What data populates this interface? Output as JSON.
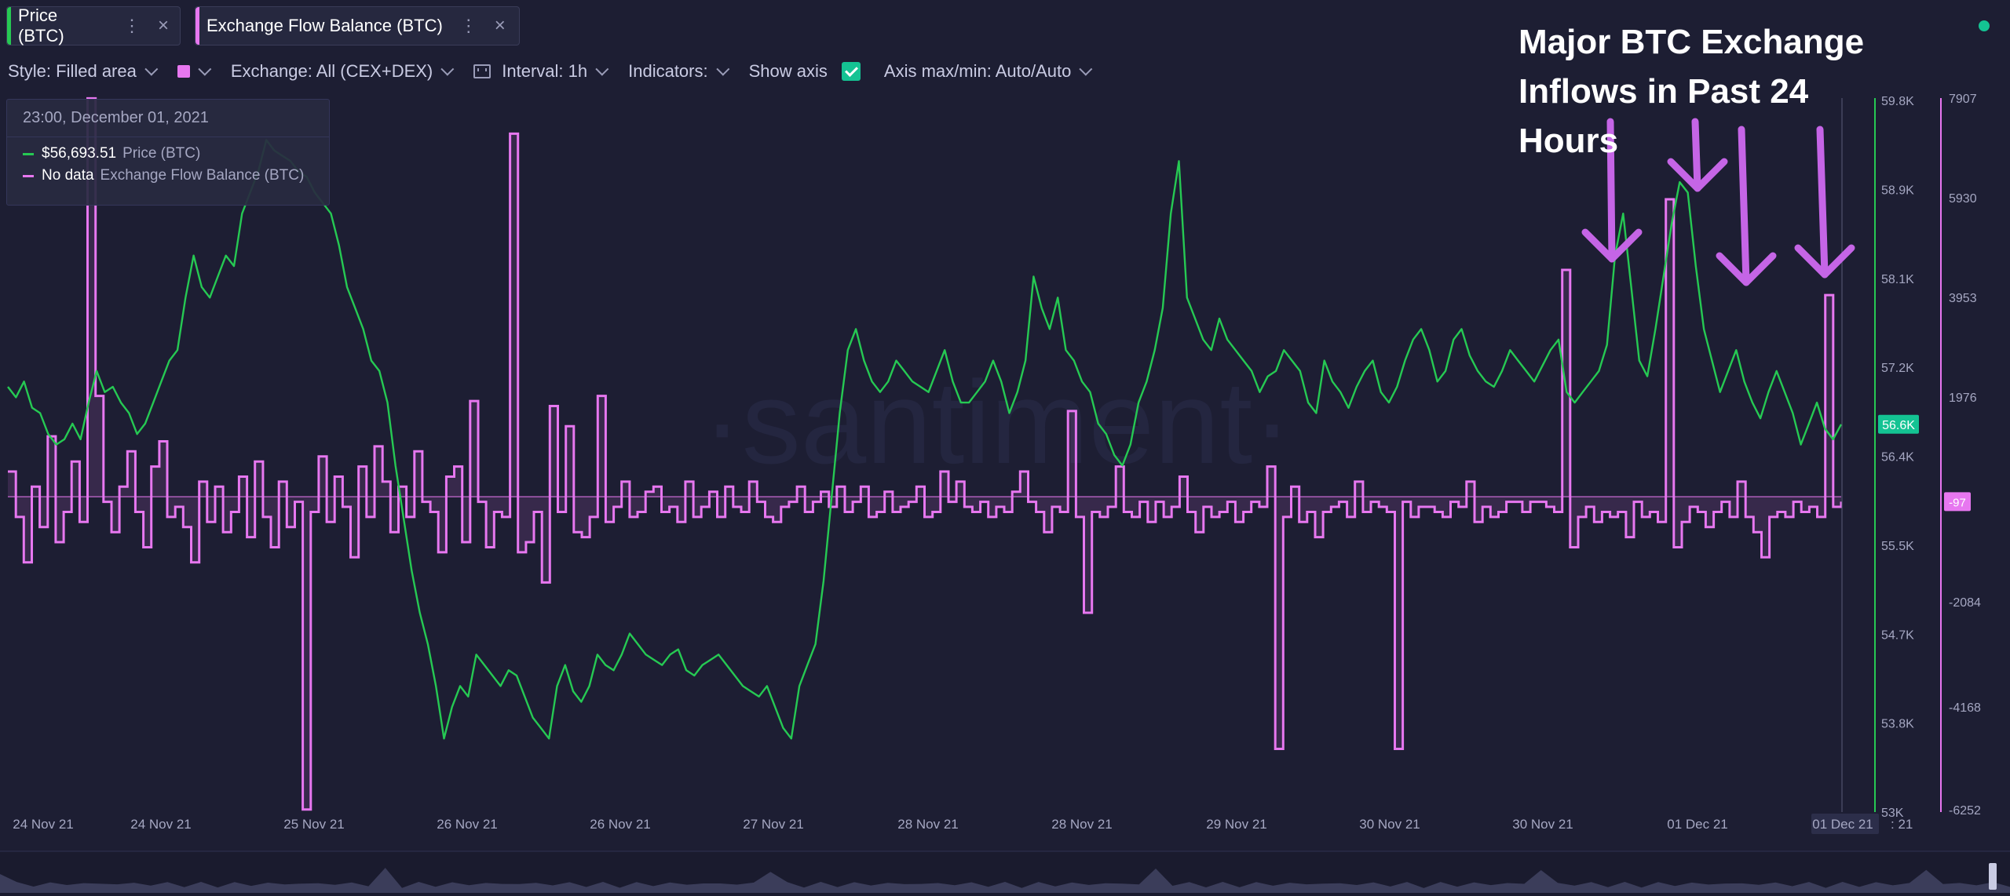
{
  "tabs": [
    {
      "label": "Price (BTC)",
      "color": "#26c953"
    },
    {
      "label": "Exchange Flow Balance (BTC)",
      "color": "#e777f0"
    }
  ],
  "toolbar": {
    "style": "Style: Filled area",
    "exchange": "Exchange: All (CEX+DEX)",
    "interval": "Interval: 1h",
    "indicators": "Indicators:",
    "show_axis": "Show axis",
    "axis_maxmin": "Axis max/min: Auto/Auto"
  },
  "tooltip": {
    "date": "23:00, December 01, 2021",
    "price_value": "$56,693.51",
    "price_label": "Price (BTC)",
    "flow_value": "No data",
    "flow_label": "Exchange Flow Balance (BTC)"
  },
  "annotation": {
    "line1": "Major BTC Exchange",
    "line2": "Inflows in Past 24 Hours"
  },
  "watermark": "·santiment·",
  "colors": {
    "price": "#26c953",
    "flow": "#e777f0",
    "annotation_arrow": "#c565e6",
    "background": "#1d1e33"
  },
  "chart_data": {
    "type": "line",
    "x_tick_labels": [
      "24 Nov 21",
      "24 Nov 21",
      "25 Nov 21",
      "26 Nov 21",
      "26 Nov 21",
      "27 Nov 21",
      "28 Nov 21",
      "28 Nov 21",
      "29 Nov 21",
      "30 Nov 21",
      "30 Nov 21",
      "01 Dec 21",
      "01 Dec 21"
    ],
    "last_x_label": "21",
    "price_axis": {
      "ticks": [
        "59.8K",
        "58.9K",
        "58.1K",
        "57.2K",
        "56.4K",
        "55.5K",
        "54.7K",
        "53.8K",
        "53K"
      ],
      "current_label": "56.6K",
      "ylim": [
        53000,
        59800
      ]
    },
    "flow_axis": {
      "ticks": [
        "7907",
        "5930",
        "3953",
        "1976",
        "-2084",
        "-4168",
        "-6252"
      ],
      "current_label": "-97",
      "ylim": [
        -6252,
        7907
      ]
    },
    "series": [
      {
        "name": "Price (BTC)",
        "values": [
          57050,
          56950,
          57100,
          56850,
          56800,
          56600,
          56500,
          56550,
          56700,
          56550,
          56900,
          57200,
          57000,
          57050,
          56900,
          56800,
          56600,
          56700,
          56900,
          57100,
          57300,
          57400,
          57900,
          58300,
          58000,
          57900,
          58100,
          58300,
          58200,
          58700,
          58900,
          59100,
          59400,
          59300,
          59250,
          59200,
          59100,
          59050,
          58900,
          58800,
          58700,
          58400,
          58000,
          57800,
          57600,
          57300,
          57200,
          56900,
          56300,
          55800,
          55300,
          54900,
          54600,
          54200,
          53700,
          54000,
          54200,
          54100,
          54500,
          54400,
          54300,
          54200,
          54350,
          54300,
          54100,
          53900,
          53800,
          53700,
          54200,
          54400,
          54150,
          54050,
          54200,
          54500,
          54400,
          54350,
          54500,
          54700,
          54600,
          54500,
          54450,
          54400,
          54500,
          54550,
          54350,
          54300,
          54400,
          54450,
          54500,
          54400,
          54300,
          54200,
          54150,
          54100,
          54200,
          54000,
          53800,
          53700,
          54200,
          54400,
          54600,
          55200,
          56000,
          56800,
          57400,
          57600,
          57300,
          57100,
          57000,
          57100,
          57300,
          57200,
          57100,
          57050,
          57000,
          57200,
          57400,
          57100,
          56900,
          56900,
          57000,
          57100,
          57300,
          57100,
          56800,
          57000,
          57300,
          58100,
          57800,
          57600,
          57900,
          57400,
          57300,
          57100,
          57000,
          56700,
          56600,
          56400,
          56300,
          56500,
          56900,
          57100,
          57400,
          57800,
          58700,
          59200,
          57900,
          57700,
          57500,
          57400,
          57700,
          57500,
          57400,
          57300,
          57200,
          57000,
          57150,
          57200,
          57400,
          57300,
          57200,
          56900,
          56800,
          57300,
          57100,
          57000,
          56850,
          57050,
          57200,
          57300,
          57000,
          56900,
          57050,
          57300,
          57500,
          57600,
          57400,
          57100,
          57200,
          57500,
          57600,
          57350,
          57200,
          57100,
          57050,
          57200,
          57400,
          57300,
          57200,
          57100,
          57250,
          57400,
          57500,
          57000,
          56900,
          57000,
          57100,
          57200,
          57450,
          58300,
          58700,
          58000,
          57300,
          57150,
          57600,
          58100,
          58600,
          59000,
          58900,
          58200,
          57600,
          57300,
          57000,
          57200,
          57400,
          57100,
          56900,
          56750,
          57000,
          57200,
          57000,
          56800,
          56500,
          56700,
          56900,
          56650,
          56550,
          56693
        ]
      },
      {
        "name": "Exchange Flow Balance (BTC)",
        "values": [
          500,
          -400,
          -1300,
          200,
          -600,
          1200,
          -900,
          -300,
          700,
          -500,
          7900,
          2000,
          -100,
          -700,
          200,
          900,
          -300,
          -1000,
          600,
          1100,
          -400,
          -200,
          -600,
          -1300,
          300,
          -500,
          200,
          -700,
          -300,
          400,
          -800,
          700,
          -400,
          -1000,
          300,
          -600,
          -100,
          -6200,
          -300,
          800,
          -500,
          400,
          -200,
          -1200,
          600,
          -400,
          1000,
          300,
          -700,
          200,
          -400,
          900,
          -100,
          -300,
          -1100,
          400,
          600,
          -900,
          1900,
          -100,
          -1000,
          -300,
          -400,
          7200,
          -1100,
          -900,
          -300,
          -1700,
          1800,
          -300,
          1400,
          -700,
          -800,
          -400,
          2000,
          -500,
          -200,
          300,
          -400,
          -300,
          100,
          200,
          -300,
          -200,
          -500,
          300,
          -400,
          -200,
          100,
          -400,
          200,
          -200,
          -300,
          300,
          -100,
          -400,
          -500,
          -200,
          -100,
          200,
          -300,
          -100,
          100,
          -200,
          200,
          -300,
          -100,
          200,
          -400,
          -300,
          100,
          -300,
          -200,
          -100,
          200,
          -400,
          -300,
          500,
          -100,
          300,
          -200,
          -300,
          -100,
          -400,
          -200,
          -300,
          100,
          500,
          -100,
          -300,
          -700,
          -200,
          -300,
          1700,
          -400,
          -2300,
          -300,
          -400,
          -200,
          600,
          -300,
          -400,
          -100,
          -500,
          -100,
          -400,
          -200,
          400,
          -300,
          -700,
          -200,
          -400,
          -300,
          -100,
          -500,
          -300,
          -100,
          -200,
          600,
          -5000,
          -400,
          200,
          -500,
          -300,
          -800,
          -300,
          -200,
          -100,
          -400,
          300,
          -300,
          -100,
          -200,
          -300,
          -5000,
          -100,
          -400,
          -200,
          -200,
          -300,
          -400,
          -100,
          -200,
          300,
          -500,
          -200,
          -400,
          -300,
          -100,
          -100,
          -300,
          -100,
          -100,
          -200,
          -300,
          4500,
          -1000,
          -400,
          -200,
          -500,
          -300,
          -400,
          -300,
          -800,
          -100,
          -400,
          -300,
          -500,
          5900,
          -1000,
          -500,
          -200,
          -300,
          -600,
          -300,
          -100,
          -400,
          300,
          -400,
          -700,
          -1200,
          -400,
          -300,
          -400,
          -100,
          -300,
          -200,
          -400,
          4000,
          -200,
          -97
        ]
      }
    ]
  }
}
